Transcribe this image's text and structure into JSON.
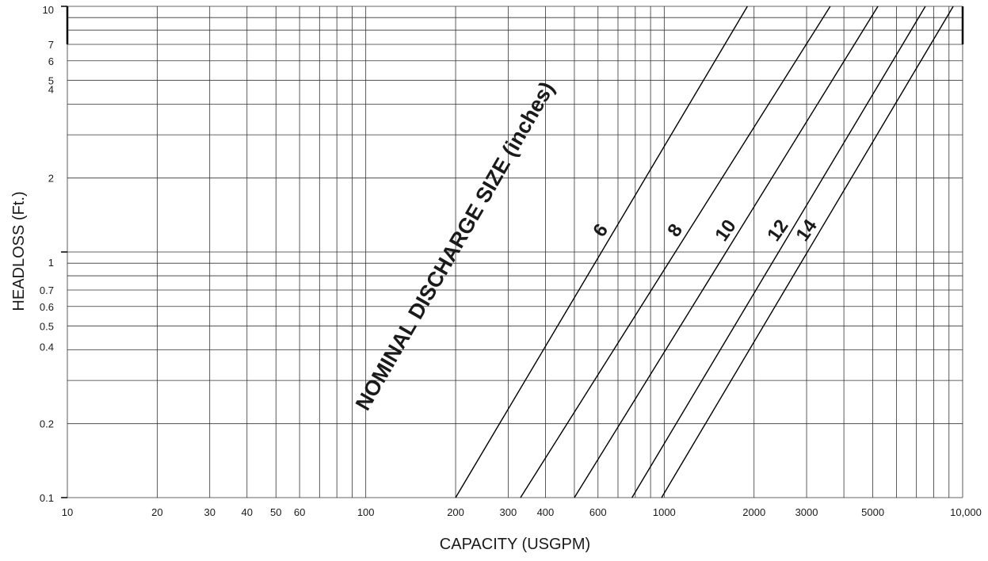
{
  "chart_data": {
    "type": "line",
    "title": "",
    "xlabel": "CAPACITY (USGPM)",
    "ylabel": "HEADLOSS (Ft.)",
    "x_scale": "log",
    "y_scale": "log",
    "xlim": [
      10,
      10000
    ],
    "ylim": [
      0.1,
      10
    ],
    "grid": true,
    "x_gridlines": [
      10,
      20,
      30,
      40,
      50,
      60,
      70,
      80,
      90,
      100,
      200,
      300,
      400,
      500,
      600,
      700,
      800,
      900,
      1000,
      2000,
      3000,
      4000,
      5000,
      6000,
      7000,
      8000,
      9000,
      10000
    ],
    "y_gridlines": [
      0.1,
      0.2,
      0.3,
      0.4,
      0.5,
      0.6,
      0.7,
      0.8,
      0.9,
      1,
      2,
      3,
      4,
      5,
      6,
      7,
      8,
      9,
      10
    ],
    "x_ticks": [
      {
        "value": 10,
        "label": "10"
      },
      {
        "value": 20,
        "label": "20"
      },
      {
        "value": 30,
        "label": "30"
      },
      {
        "value": 40,
        "label": "40"
      },
      {
        "value": 50,
        "label": "50"
      },
      {
        "value": 60,
        "label": "60"
      },
      {
        "value": 100,
        "label": "100"
      },
      {
        "value": 200,
        "label": "200"
      },
      {
        "value": 300,
        "label": "300"
      },
      {
        "value": 400,
        "label": "400"
      },
      {
        "value": 600,
        "label": "600"
      },
      {
        "value": 1000,
        "label": "1000"
      },
      {
        "value": 2000,
        "label": "2000"
      },
      {
        "value": 3000,
        "label": "3000"
      },
      {
        "value": 5000,
        "label": "5000"
      },
      {
        "value": 10000,
        "label": "10,000"
      }
    ],
    "y_ticks": [
      {
        "value": 10,
        "label": "10"
      },
      {
        "value": 7,
        "label": "7"
      },
      {
        "value": 6,
        "label": "6"
      },
      {
        "value": 5,
        "label": "5"
      },
      {
        "value": 4,
        "label": "4"
      },
      {
        "value": 2,
        "label": "2"
      },
      {
        "value": 1,
        "label": "1"
      },
      {
        "value": 0.7,
        "label": "0.7"
      },
      {
        "value": 0.6,
        "label": "0.6"
      },
      {
        "value": 0.5,
        "label": "0.5"
      },
      {
        "value": 0.4,
        "label": "0.4"
      },
      {
        "value": 0.2,
        "label": "0.2"
      },
      {
        "value": 0.1,
        "label": "0.1"
      }
    ],
    "annotation": "NOMINAL DISCHARGE SIZE (inches)",
    "series": [
      {
        "label": "6",
        "points": [
          [
            200,
            0.1
          ],
          [
            1900,
            10
          ]
        ]
      },
      {
        "label": "8",
        "points": [
          [
            330,
            0.1
          ],
          [
            3600,
            10
          ]
        ]
      },
      {
        "label": "10",
        "points": [
          [
            500,
            0.1
          ],
          [
            5200,
            10
          ]
        ]
      },
      {
        "label": "12",
        "points": [
          [
            780,
            0.1
          ],
          [
            7500,
            10
          ]
        ]
      },
      {
        "label": "14",
        "points": [
          [
            980,
            0.1
          ],
          [
            9300,
            10
          ]
        ]
      }
    ]
  }
}
